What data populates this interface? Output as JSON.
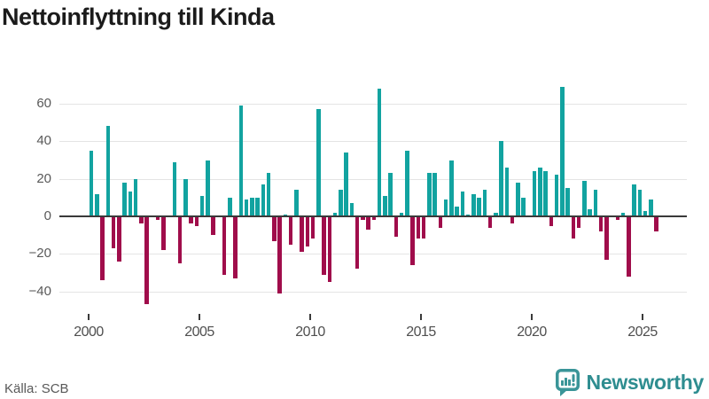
{
  "title": "Nettoinflyttning till Kinda",
  "source": "Källa: SCB",
  "logo": {
    "text": "Newsworthy",
    "icon": "newsworthy-bubble-chart-icon"
  },
  "colors": {
    "positive_bar": "#12a3a0",
    "negative_bar": "#a00d4b",
    "grid": "#e4e4e4",
    "zero_line": "#3a3a3a",
    "axis_text": "#595959",
    "title_text": "#1b1b1b",
    "logo_teal": "#2e8d90"
  },
  "chart_data": {
    "type": "bar",
    "title": "Nettoinflyttning till Kinda",
    "x_unit": "quarter",
    "x_start": "2000-Q1",
    "x_end": "2025-Q3",
    "grid": true,
    "legend": "none",
    "ylim": [
      -50,
      72
    ],
    "y_ticks": [
      60,
      40,
      20,
      0,
      -20,
      -40
    ],
    "y_tick_labels": [
      "60",
      "40",
      "20",
      "0",
      "−20",
      "−40"
    ],
    "x_ticks": [
      2000,
      2005,
      2010,
      2015,
      2020,
      2025
    ],
    "x_tick_labels": [
      "2000",
      "2005",
      "2010",
      "2015",
      "2020",
      "2025"
    ],
    "series": [
      {
        "name": "Nettoinflyttning",
        "values": [
          35,
          12,
          -34,
          48,
          -17,
          -24,
          18,
          13,
          20,
          -4,
          -47,
          0,
          -2,
          -18,
          0,
          29,
          -25,
          20,
          -4,
          -5,
          11,
          30,
          -10,
          0,
          -31,
          10,
          -33,
          59,
          9,
          10,
          10,
          17,
          23,
          -13,
          -41,
          1,
          -15,
          14,
          -19,
          -16,
          -12,
          57,
          -31,
          -35,
          2,
          14,
          34,
          7,
          -28,
          -2,
          -7,
          -2,
          68,
          11,
          23,
          -11,
          2,
          35,
          -26,
          -12,
          -12,
          23,
          23,
          -6,
          9,
          30,
          5,
          13,
          1,
          12,
          10,
          14,
          -6,
          2,
          40,
          26,
          -4,
          18,
          10,
          0,
          24,
          26,
          24,
          -5,
          22,
          69,
          15,
          -12,
          -6,
          19,
          4,
          14,
          -8,
          -23,
          0,
          -2,
          2,
          -32,
          17,
          14,
          3,
          9,
          -8
        ]
      }
    ]
  }
}
